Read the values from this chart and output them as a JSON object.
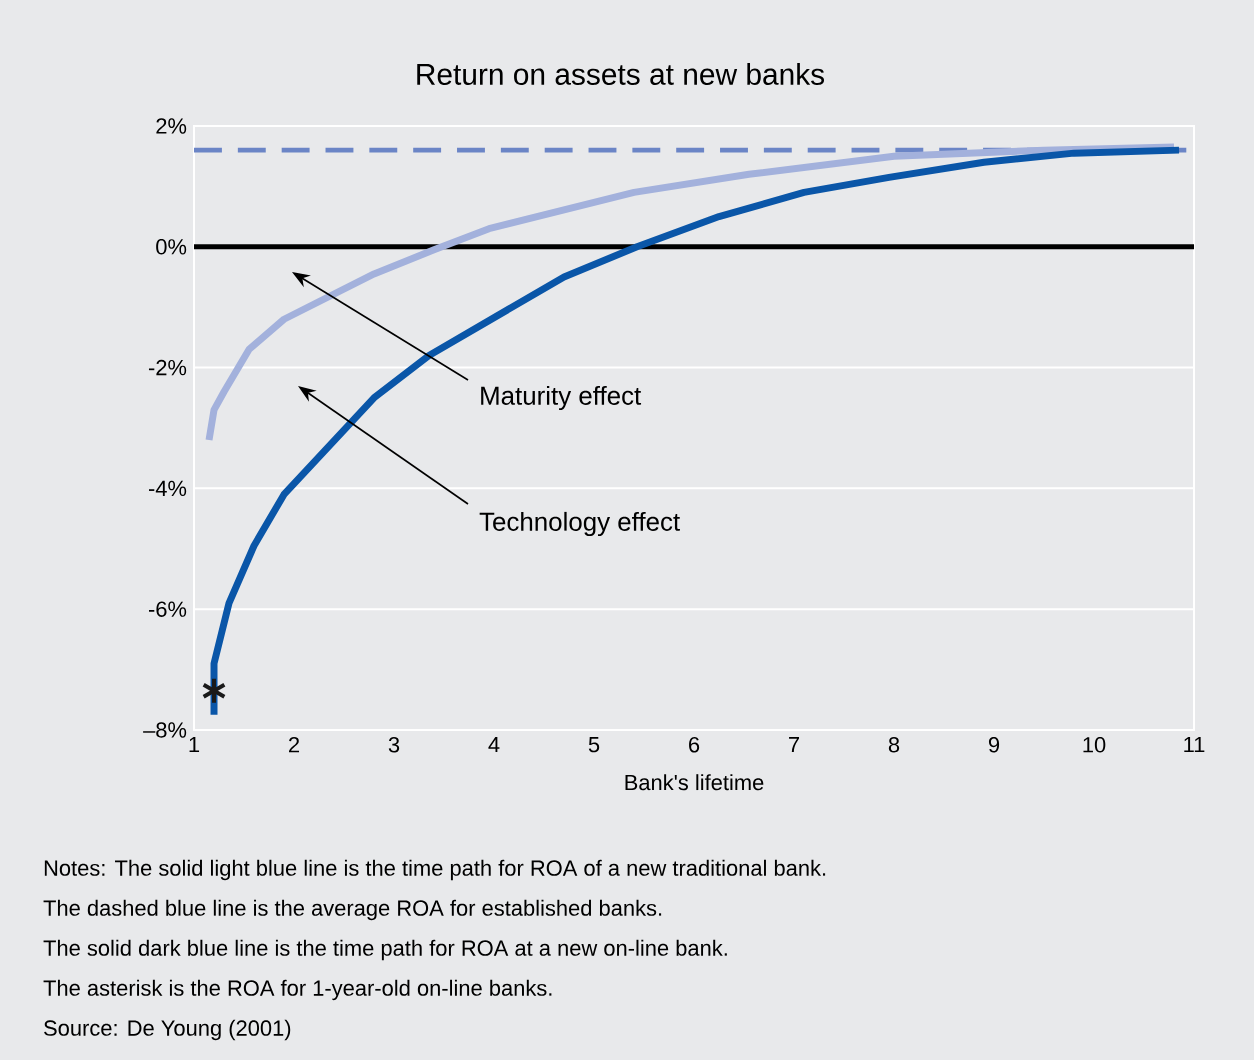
{
  "chart_data": {
    "type": "line",
    "title": "Return on assets at new banks",
    "xlabel": "Bank's lifetime",
    "xlim": [
      1,
      11
    ],
    "xticks": [
      1,
      2,
      3,
      4,
      5,
      6,
      7,
      8,
      9,
      10,
      11
    ],
    "ylim": [
      -8,
      2
    ],
    "yticks": [
      {
        "value": -8,
        "label": "–8%"
      },
      {
        "value": -6,
        "label": "-6%"
      },
      {
        "value": -4,
        "label": "-4%"
      },
      {
        "value": -2,
        "label": "-2%"
      },
      {
        "value": 0,
        "label": "0%"
      },
      {
        "value": 2,
        "label": "2%"
      }
    ],
    "grid": "y",
    "series": [
      {
        "color": "#a3b1dc",
        "marker": "none",
        "line_style": "solid",
        "x": [
          1.15,
          1.2,
          1.3,
          1.55,
          1.9,
          2.8,
          3.4,
          3.95,
          5.4,
          6.55,
          8.0,
          9.5,
          10.8
        ],
        "values": [
          -3.2,
          -2.7,
          -2.4,
          -1.7,
          -1.2,
          -0.45,
          -0.05,
          0.3,
          0.9,
          1.2,
          1.5,
          1.6,
          1.65
        ]
      },
      {
        "color": "#0a56a8",
        "marker": "none",
        "line_style": "solid",
        "x": [
          1.2,
          1.2,
          1.35,
          1.6,
          1.9,
          2.8,
          3.35,
          4.7,
          5.43,
          6.25,
          7.1,
          7.95,
          8.9,
          9.8,
          10.85
        ],
        "values": [
          -7.75,
          -6.9,
          -5.9,
          -4.95,
          -4.1,
          -2.5,
          -1.8,
          -0.5,
          0,
          0.5,
          0.9,
          1.15,
          1.4,
          1.55,
          1.6
        ]
      },
      {
        "type": "scatter",
        "color": "#1a1a1a",
        "marker": "cross",
        "x": [
          1.2
        ],
        "values": [
          -7.35
        ]
      }
    ],
    "ref_lines": [
      {
        "axis": "y",
        "value": 1.6,
        "color": "#6b85c6",
        "line_style": "dashed"
      },
      {
        "axis": "y",
        "value": 0,
        "color": "#000000",
        "line_style": "solid"
      }
    ],
    "annotations": [
      "Maturity effect",
      "Technology effect",
      "Notes: The solid light blue line is the time path for ROA of a new traditional bank.",
      "The dashed blue line is the average ROA for established banks.",
      "The solid dark blue line is the time path for ROA at a new on-line bank.",
      "The asterisk is the ROA for 1-year-old on-line banks.",
      "Source: De Young (2001)"
    ]
  }
}
